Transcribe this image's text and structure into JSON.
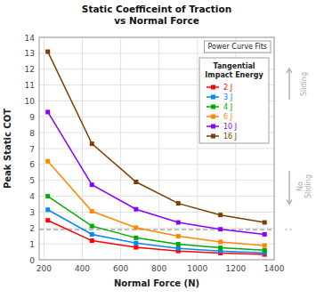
{
  "chart_data": {
    "type": "scatter",
    "title": "Static Coefficeint of Traction\nvs Normal Force",
    "xlabel": "Normal Force (N)",
    "ylabel": "Peak Static COT",
    "xlim": [
      175,
      1400
    ],
    "ylim": [
      0,
      14
    ],
    "xticks": [
      200,
      400,
      600,
      800,
      1000,
      1200,
      1400
    ],
    "yticks": [
      0,
      1,
      2,
      3,
      4,
      5,
      6,
      7,
      8,
      9,
      10,
      11,
      12,
      13,
      14
    ],
    "grid": true,
    "legend": "upper right",
    "legend_title": "Tangential\nImpact Energy",
    "reference_line_y": 1.9,
    "annotations": [
      "Power Curve Fits",
      "Sliding",
      "No\nSliding"
    ],
    "x": [
      220,
      450,
      680,
      900,
      1120,
      1350
    ],
    "marker": "square",
    "line_style": "solid",
    "series": [
      {
        "name": "2 J",
        "color": "#ff0000",
        "values": [
          2.48,
          1.2,
          0.78,
          0.55,
          0.42,
          0.33
        ]
      },
      {
        "name": "3 J",
        "color": "#0088ff",
        "values": [
          3.15,
          1.6,
          1.05,
          0.72,
          0.55,
          0.44
        ]
      },
      {
        "name": "4 J",
        "color": "#00aa00",
        "values": [
          4.0,
          2.12,
          1.38,
          0.98,
          0.75,
          0.6
        ]
      },
      {
        "name": "6 J",
        "color": "#ff8800",
        "values": [
          6.2,
          3.05,
          2.02,
          1.48,
          1.12,
          0.9
        ]
      },
      {
        "name": "10 J",
        "color": "#8800ff",
        "values": [
          9.3,
          4.72,
          3.18,
          2.35,
          1.92,
          1.6
        ]
      },
      {
        "name": "16 J",
        "color": "#7a4000",
        "values": [
          13.1,
          7.3,
          4.9,
          3.55,
          2.82,
          2.35
        ]
      }
    ]
  }
}
